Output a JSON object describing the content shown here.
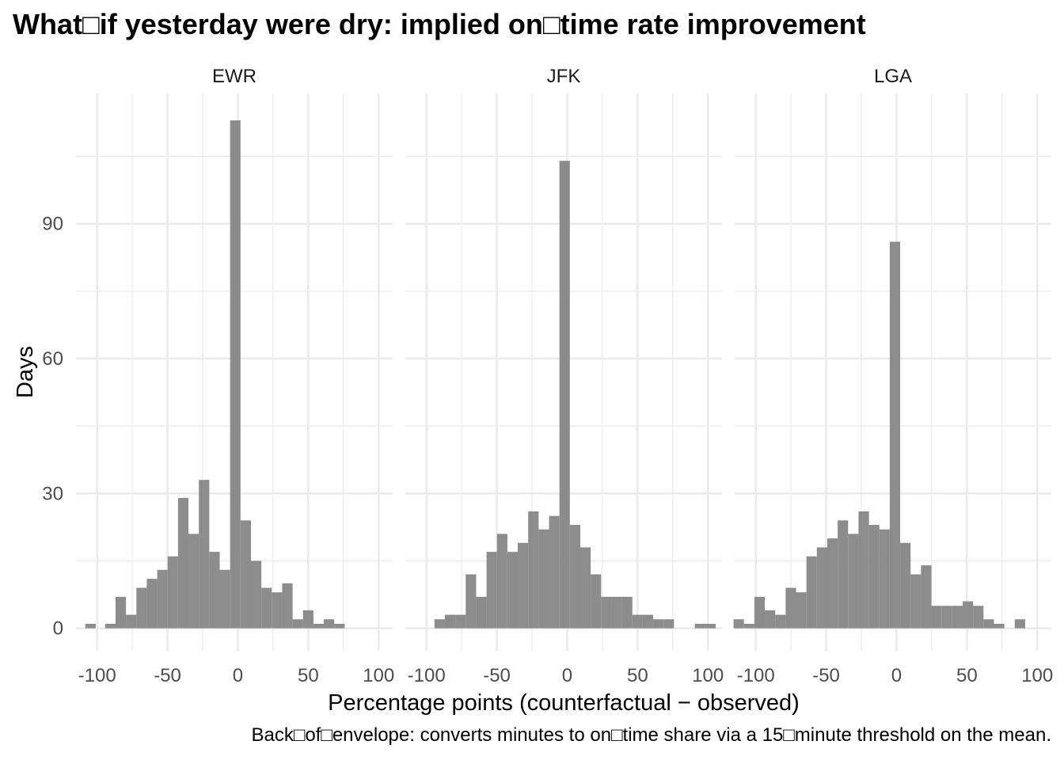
{
  "chart_data": {
    "type": "bar",
    "title": "What□if yesterday were dry: implied on□time rate improvement",
    "xlabel": "Percentage points (counterfactual − observed)",
    "ylabel": "Days",
    "caption": "Back□of□envelope: converts minutes to on□time share via a 15□minute threshold on the mean.",
    "xlim": [
      -115,
      110
    ],
    "ylim": [
      -5,
      119
    ],
    "x_ticks": [
      -100,
      -50,
      0,
      50,
      100
    ],
    "x_tick_labels": [
      "-100",
      "-50",
      "0",
      "50",
      "100"
    ],
    "y_ticks": [
      0,
      30,
      60,
      90
    ],
    "y_tick_labels": [
      "0",
      "30",
      "60",
      "90"
    ],
    "bin_width": 7.4,
    "bar_color": "#8c8c8c",
    "grid": true,
    "panels": [
      {
        "name": "EWR",
        "bins": [
          {
            "x": -104.7,
            "y": 1
          },
          {
            "x": -90.6,
            "y": 1
          },
          {
            "x": -83.2,
            "y": 7
          },
          {
            "x": -75.8,
            "y": 3
          },
          {
            "x": -68.4,
            "y": 9
          },
          {
            "x": -61.0,
            "y": 11
          },
          {
            "x": -53.6,
            "y": 13
          },
          {
            "x": -46.2,
            "y": 16
          },
          {
            "x": -38.8,
            "y": 29
          },
          {
            "x": -31.4,
            "y": 21
          },
          {
            "x": -24.0,
            "y": 33
          },
          {
            "x": -16.6,
            "y": 17
          },
          {
            "x": -9.2,
            "y": 13
          },
          {
            "x": -1.8,
            "y": 113
          },
          {
            "x": 5.6,
            "y": 24
          },
          {
            "x": 13.0,
            "y": 15
          },
          {
            "x": 20.4,
            "y": 9
          },
          {
            "x": 27.8,
            "y": 8
          },
          {
            "x": 35.2,
            "y": 10
          },
          {
            "x": 42.6,
            "y": 2
          },
          {
            "x": 50.0,
            "y": 4
          },
          {
            "x": 57.4,
            "y": 1
          },
          {
            "x": 64.8,
            "y": 2
          },
          {
            "x": 72.2,
            "y": 1
          }
        ]
      },
      {
        "name": "JFK",
        "bins": [
          {
            "x": -90.6,
            "y": 2
          },
          {
            "x": -83.2,
            "y": 3
          },
          {
            "x": -75.8,
            "y": 3
          },
          {
            "x": -68.4,
            "y": 12
          },
          {
            "x": -61.0,
            "y": 7
          },
          {
            "x": -53.6,
            "y": 17
          },
          {
            "x": -46.2,
            "y": 21
          },
          {
            "x": -38.8,
            "y": 17
          },
          {
            "x": -31.4,
            "y": 19
          },
          {
            "x": -24.0,
            "y": 26
          },
          {
            "x": -16.6,
            "y": 22
          },
          {
            "x": -9.2,
            "y": 25
          },
          {
            "x": -1.8,
            "y": 104
          },
          {
            "x": 5.6,
            "y": 23
          },
          {
            "x": 13.0,
            "y": 18
          },
          {
            "x": 20.4,
            "y": 12
          },
          {
            "x": 27.8,
            "y": 7
          },
          {
            "x": 35.2,
            "y": 7
          },
          {
            "x": 42.6,
            "y": 7
          },
          {
            "x": 50.0,
            "y": 3
          },
          {
            "x": 57.4,
            "y": 3
          },
          {
            "x": 64.8,
            "y": 2
          },
          {
            "x": 72.2,
            "y": 2
          },
          {
            "x": 94.4,
            "y": 1
          },
          {
            "x": 101.8,
            "y": 1
          }
        ]
      },
      {
        "name": "LGA",
        "bins": [
          {
            "x": -112.1,
            "y": 2
          },
          {
            "x": -104.7,
            "y": 1
          },
          {
            "x": -97.3,
            "y": 7
          },
          {
            "x": -89.9,
            "y": 4
          },
          {
            "x": -82.5,
            "y": 3
          },
          {
            "x": -75.1,
            "y": 9
          },
          {
            "x": -67.7,
            "y": 8
          },
          {
            "x": -60.3,
            "y": 16
          },
          {
            "x": -52.9,
            "y": 18
          },
          {
            "x": -45.5,
            "y": 20
          },
          {
            "x": -38.1,
            "y": 24
          },
          {
            "x": -30.7,
            "y": 21
          },
          {
            "x": -23.3,
            "y": 26
          },
          {
            "x": -15.9,
            "y": 23
          },
          {
            "x": -8.5,
            "y": 22
          },
          {
            "x": -1.1,
            "y": 86
          },
          {
            "x": 6.3,
            "y": 19
          },
          {
            "x": 13.7,
            "y": 12
          },
          {
            "x": 21.1,
            "y": 14
          },
          {
            "x": 28.5,
            "y": 5
          },
          {
            "x": 35.9,
            "y": 5
          },
          {
            "x": 43.3,
            "y": 5
          },
          {
            "x": 50.7,
            "y": 6
          },
          {
            "x": 58.1,
            "y": 5
          },
          {
            "x": 65.5,
            "y": 2
          },
          {
            "x": 72.9,
            "y": 1
          },
          {
            "x": 87.7,
            "y": 2
          }
        ]
      }
    ]
  }
}
